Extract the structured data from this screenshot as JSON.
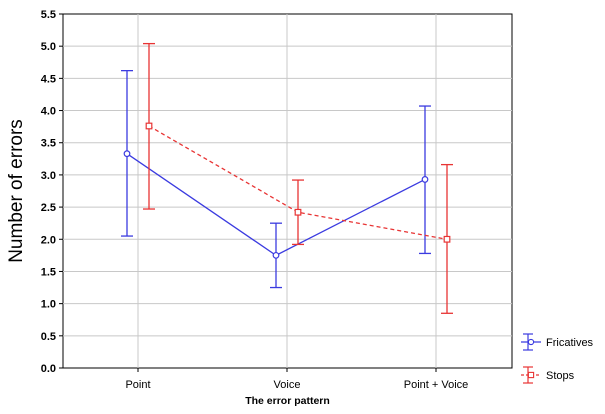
{
  "chart_data": {
    "type": "line",
    "xlabel": "The error pattern",
    "ylabel": "Number of errors",
    "categories": [
      "Point",
      "Voice",
      "Point + Voice"
    ],
    "ylim": [
      0.0,
      5.5
    ],
    "yticks": [
      "0.0",
      "0.5",
      "1.0",
      "1.5",
      "2.0",
      "2.5",
      "3.0",
      "3.5",
      "4.0",
      "4.5",
      "5.0",
      "5.5"
    ],
    "grid": true,
    "legend_position": "bottom-right",
    "error_bars": true,
    "series": [
      {
        "name": "Fricatives",
        "color": "#3b3be0",
        "marker": "circle",
        "line_style": "solid",
        "values": [
          3.33,
          1.75,
          2.93
        ],
        "lower": [
          2.05,
          1.25,
          1.78
        ],
        "upper": [
          4.62,
          2.25,
          4.07
        ]
      },
      {
        "name": "Stops",
        "color": "#e83434",
        "marker": "square",
        "line_style": "dashed",
        "values": [
          3.76,
          2.42,
          2.0
        ],
        "lower": [
          2.47,
          1.92,
          0.85
        ],
        "upper": [
          5.04,
          2.92,
          3.16
        ]
      }
    ]
  }
}
